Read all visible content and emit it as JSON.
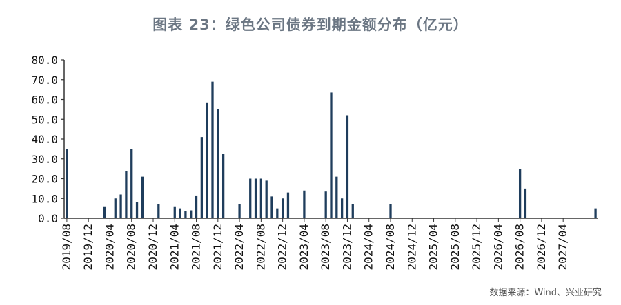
{
  "title": "图表 23：绿色公司债券到期金额分布（亿元）",
  "source": "数据来源：Wind、兴业研究",
  "colors": {
    "bar": "#1f3d5c",
    "axis": "#333333",
    "title": "#6b7683"
  },
  "chart_data": {
    "type": "bar",
    "title": "图表 23：绿色公司债券到期金额分布（亿元）",
    "xlabel": "",
    "ylabel": "",
    "ylim": [
      0,
      80
    ],
    "yticks": [
      "0.0",
      "10.0",
      "20.0",
      "30.0",
      "40.0",
      "50.0",
      "60.0",
      "70.0",
      "80.0"
    ],
    "grid": false,
    "legend": "none",
    "xtick_labels": [
      "2019/08",
      "2019/12",
      "2020/04",
      "2020/08",
      "2020/12",
      "2021/04",
      "2021/08",
      "2021/12",
      "2022/04",
      "2022/08",
      "2022/12",
      "2023/04",
      "2023/08",
      "2023/12",
      "2024/04",
      "2024/08",
      "2024/12",
      "2025/04",
      "2025/08",
      "2025/12",
      "2026/04",
      "2026/08",
      "2026/12",
      "2027/04"
    ],
    "categories": [
      "2019/08",
      "2019/09",
      "2019/10",
      "2019/11",
      "2019/12",
      "2020/01",
      "2020/02",
      "2020/03",
      "2020/04",
      "2020/05",
      "2020/06",
      "2020/07",
      "2020/08",
      "2020/09",
      "2020/10",
      "2020/11",
      "2020/12",
      "2021/01",
      "2021/02",
      "2021/03",
      "2021/04",
      "2021/05",
      "2021/06",
      "2021/07",
      "2021/08",
      "2021/09",
      "2021/10",
      "2021/11",
      "2021/12",
      "2022/01",
      "2022/02",
      "2022/03",
      "2022/04",
      "2022/05",
      "2022/06",
      "2022/07",
      "2022/08",
      "2022/09",
      "2022/10",
      "2022/11",
      "2022/12",
      "2023/01",
      "2023/02",
      "2023/03",
      "2023/04",
      "2023/05",
      "2023/06",
      "2023/07",
      "2023/08",
      "2023/09",
      "2023/10",
      "2023/11",
      "2023/12",
      "2024/01",
      "2024/02",
      "2024/03",
      "2024/04",
      "2024/05",
      "2024/06",
      "2024/07",
      "2024/08",
      "2024/09",
      "2024/10",
      "2024/11",
      "2024/12",
      "2025/01",
      "2025/02",
      "2025/03",
      "2025/04",
      "2025/05",
      "2025/06",
      "2025/07",
      "2025/08",
      "2025/09",
      "2025/10",
      "2025/11",
      "2025/12",
      "2026/01",
      "2026/02",
      "2026/03",
      "2026/04",
      "2026/05",
      "2026/06",
      "2026/07",
      "2026/08",
      "2026/09",
      "2026/10",
      "2026/11",
      "2026/12",
      "2027/01",
      "2027/02",
      "2027/03",
      "2027/04",
      "2027/05",
      "2027/06",
      "2027/07",
      "2027/08",
      "2027/09",
      "2027/10"
    ],
    "values": [
      35,
      0,
      0,
      0,
      0,
      0,
      0,
      6,
      0,
      10,
      12,
      24,
      35,
      8,
      21,
      0,
      0,
      7,
      0,
      0,
      6,
      5,
      3.5,
      4,
      11.5,
      41,
      58.5,
      69,
      55,
      32.5,
      0,
      0,
      7,
      0,
      20,
      20,
      20,
      19,
      11,
      5,
      10,
      13,
      0,
      0,
      14,
      0,
      0,
      0,
      13.5,
      63.5,
      21,
      10,
      52,
      7,
      0,
      0,
      0,
      0,
      0,
      0,
      7,
      0,
      0,
      0,
      0,
      0,
      0,
      0,
      0,
      0,
      0,
      0,
      0,
      0,
      0,
      0,
      0,
      0,
      0,
      0,
      0,
      0,
      0,
      0,
      25,
      15,
      0,
      0,
      0,
      0,
      0,
      0,
      0,
      0,
      0,
      0,
      0,
      0,
      5
    ]
  }
}
